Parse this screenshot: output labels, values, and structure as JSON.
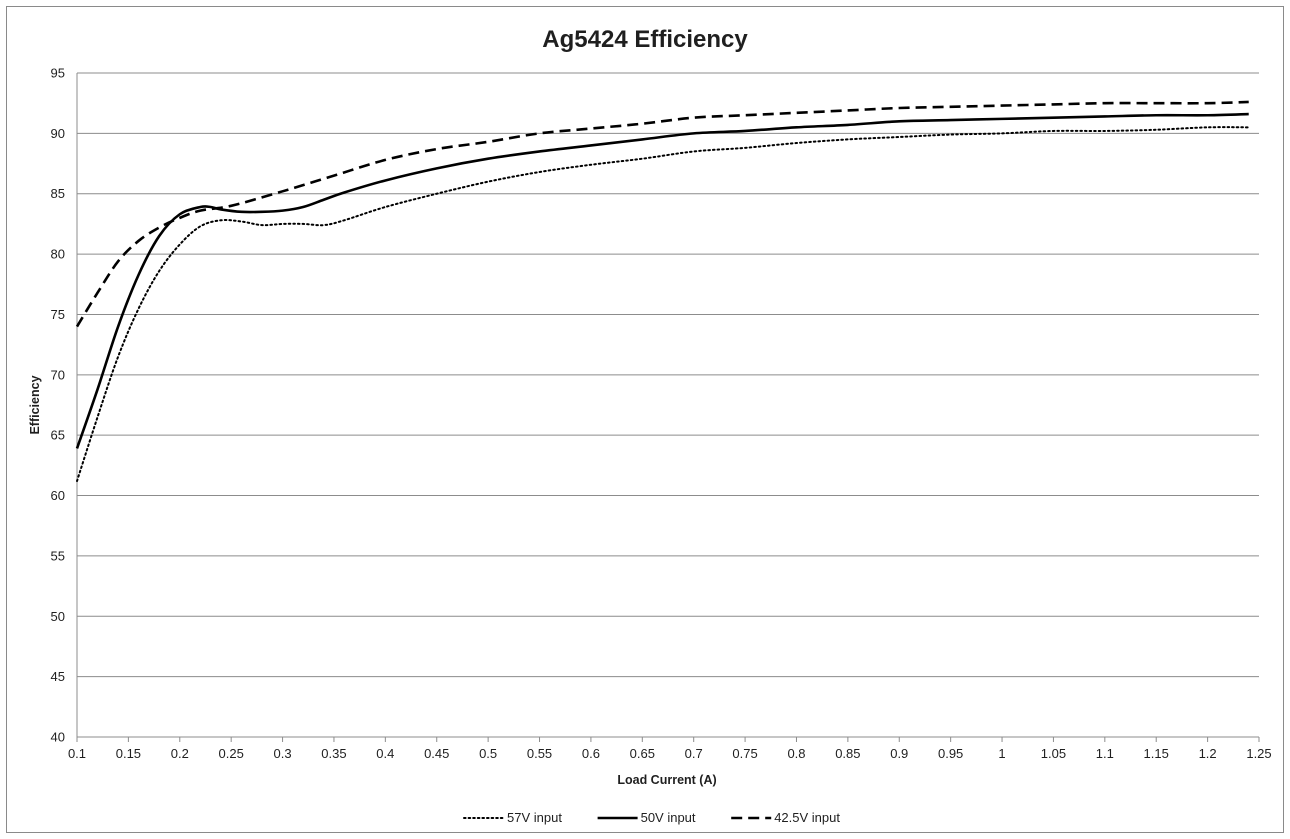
{
  "chart_data": {
    "type": "line",
    "title": "Ag5424 Efficiency",
    "xlabel": "Load Current (A)",
    "ylabel": "Efficiency",
    "xlim": [
      0.1,
      1.25
    ],
    "ylim": [
      40,
      95
    ],
    "xticks": [
      "0.1",
      "0.15",
      "0.2",
      "0.25",
      "0.3",
      "0.35",
      "0.4",
      "0.45",
      "0.5",
      "0.55",
      "0.6",
      "0.65",
      "0.7",
      "0.75",
      "0.8",
      "0.85",
      "0.9",
      "0.95",
      "1",
      "1.05",
      "1.1",
      "1.15",
      "1.2",
      "1.25"
    ],
    "yticks": [
      "40",
      "45",
      "50",
      "55",
      "60",
      "65",
      "70",
      "75",
      "80",
      "85",
      "90",
      "95"
    ],
    "grid": "horizontal",
    "legend_position": "bottom",
    "series": [
      {
        "name": "57V input",
        "style": "dotted",
        "color": "#000000",
        "x": [
          0.1,
          0.12,
          0.14,
          0.16,
          0.18,
          0.2,
          0.22,
          0.24,
          0.26,
          0.28,
          0.3,
          0.32,
          0.34,
          0.36,
          0.4,
          0.45,
          0.5,
          0.55,
          0.6,
          0.65,
          0.7,
          0.75,
          0.8,
          0.85,
          0.9,
          0.95,
          1.0,
          1.05,
          1.1,
          1.15,
          1.2,
          1.24
        ],
        "y": [
          61.2,
          66.5,
          71.5,
          75.5,
          78.6,
          80.8,
          82.3,
          82.8,
          82.7,
          82.4,
          82.5,
          82.5,
          82.4,
          82.8,
          83.9,
          85.0,
          86.0,
          86.8,
          87.4,
          87.9,
          88.5,
          88.8,
          89.2,
          89.5,
          89.7,
          89.9,
          90.0,
          90.2,
          90.2,
          90.3,
          90.5,
          90.5
        ]
      },
      {
        "name": "50V input",
        "style": "solid",
        "color": "#000000",
        "x": [
          0.1,
          0.12,
          0.14,
          0.16,
          0.18,
          0.2,
          0.22,
          0.23,
          0.24,
          0.26,
          0.28,
          0.3,
          0.32,
          0.34,
          0.36,
          0.4,
          0.45,
          0.5,
          0.55,
          0.6,
          0.65,
          0.7,
          0.75,
          0.8,
          0.85,
          0.9,
          0.95,
          1.0,
          1.05,
          1.1,
          1.15,
          1.2,
          1.24
        ],
        "y": [
          63.9,
          68.8,
          74.0,
          78.3,
          81.5,
          83.3,
          83.9,
          83.9,
          83.7,
          83.5,
          83.5,
          83.6,
          83.9,
          84.5,
          85.1,
          86.1,
          87.1,
          87.9,
          88.5,
          89.0,
          89.5,
          90.0,
          90.2,
          90.5,
          90.7,
          91.0,
          91.1,
          91.2,
          91.3,
          91.4,
          91.5,
          91.5,
          91.6
        ]
      },
      {
        "name": "42.5V input",
        "style": "dashed",
        "color": "#000000",
        "x": [
          0.1,
          0.12,
          0.14,
          0.16,
          0.18,
          0.2,
          0.22,
          0.25,
          0.3,
          0.35,
          0.4,
          0.45,
          0.5,
          0.55,
          0.6,
          0.65,
          0.7,
          0.75,
          0.8,
          0.85,
          0.9,
          0.95,
          1.0,
          1.05,
          1.1,
          1.15,
          1.2,
          1.24
        ],
        "y": [
          74.0,
          76.8,
          79.4,
          81.1,
          82.2,
          83.0,
          83.6,
          84.0,
          85.2,
          86.5,
          87.8,
          88.7,
          89.3,
          90.0,
          90.4,
          90.8,
          91.3,
          91.5,
          91.7,
          91.9,
          92.1,
          92.2,
          92.3,
          92.4,
          92.5,
          92.5,
          92.5,
          92.6
        ]
      }
    ]
  }
}
